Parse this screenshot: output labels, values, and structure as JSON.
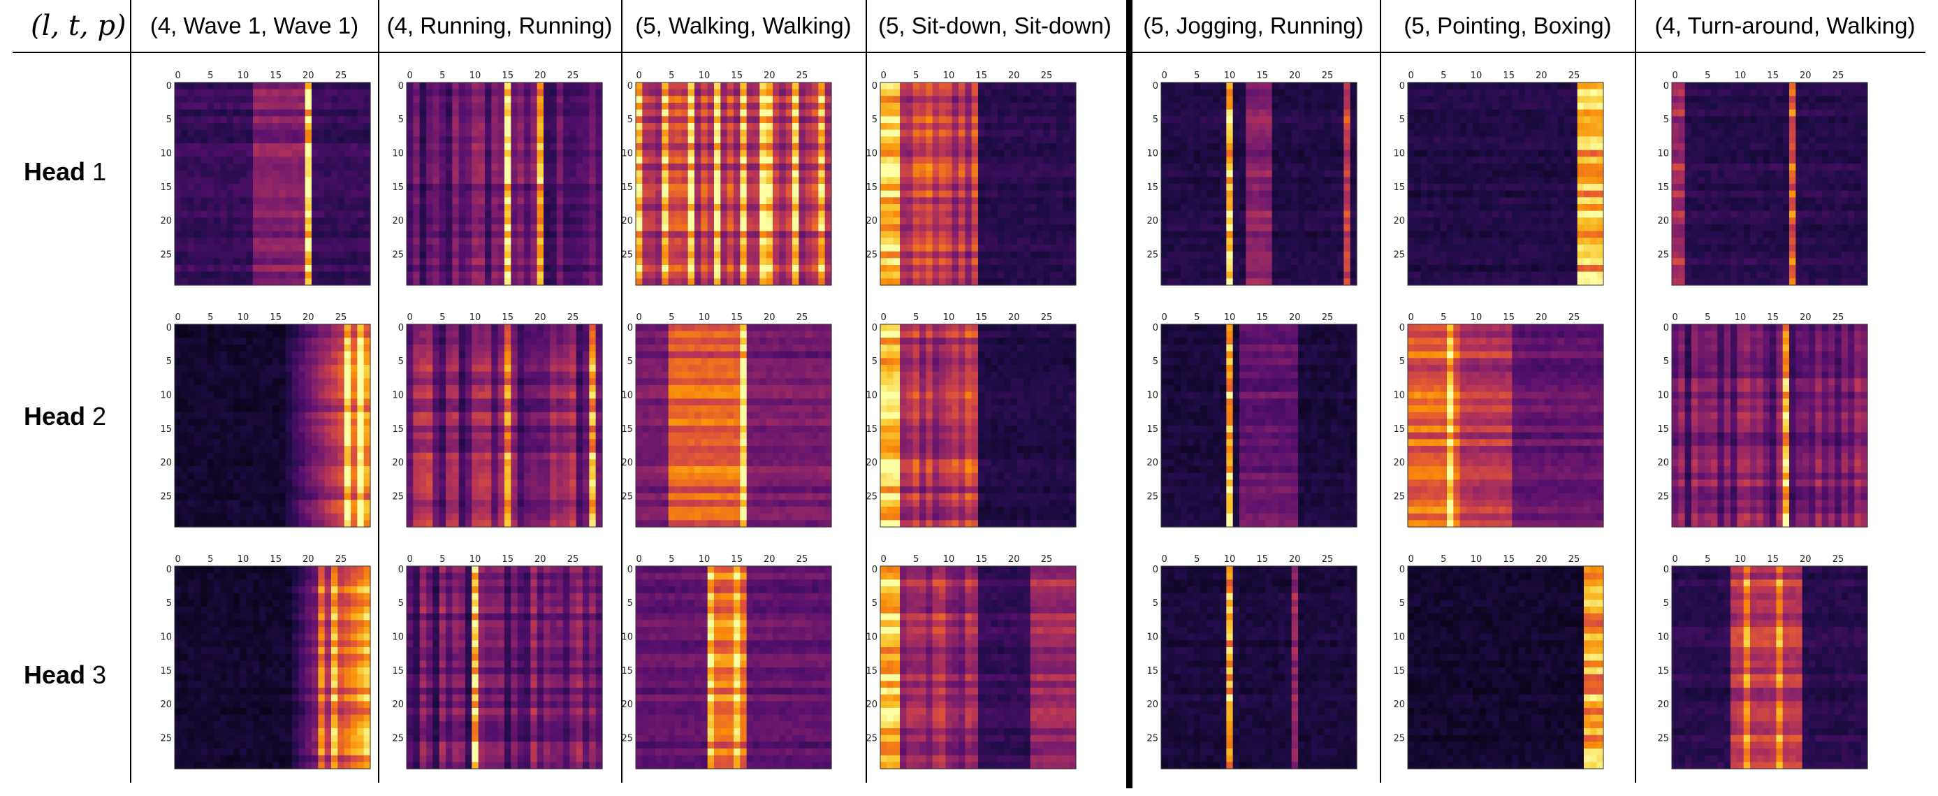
{
  "corner_label": "(l, t, p)",
  "columns": [
    {
      "label": "(4, Wave 1, Wave 1)"
    },
    {
      "label": "(4, Running, Running)"
    },
    {
      "label": "(5, Walking, Walking)"
    },
    {
      "label": "(5, Sit-down, Sit-down)"
    },
    {
      "label": "(5, Jogging, Running)"
    },
    {
      "label": "(5, Pointing, Boxing)"
    },
    {
      "label": "(4, Turn-around, Walking)"
    }
  ],
  "rows": [
    {
      "head_word": "Head",
      "head_index": "1"
    },
    {
      "head_word": "Head",
      "head_index": "2"
    },
    {
      "head_word": "Head",
      "head_index": "3"
    }
  ],
  "colormap": "inferno",
  "axis_ticks": [
    "0",
    "5",
    "10",
    "15",
    "20",
    "25"
  ],
  "matrix_size": 30
}
